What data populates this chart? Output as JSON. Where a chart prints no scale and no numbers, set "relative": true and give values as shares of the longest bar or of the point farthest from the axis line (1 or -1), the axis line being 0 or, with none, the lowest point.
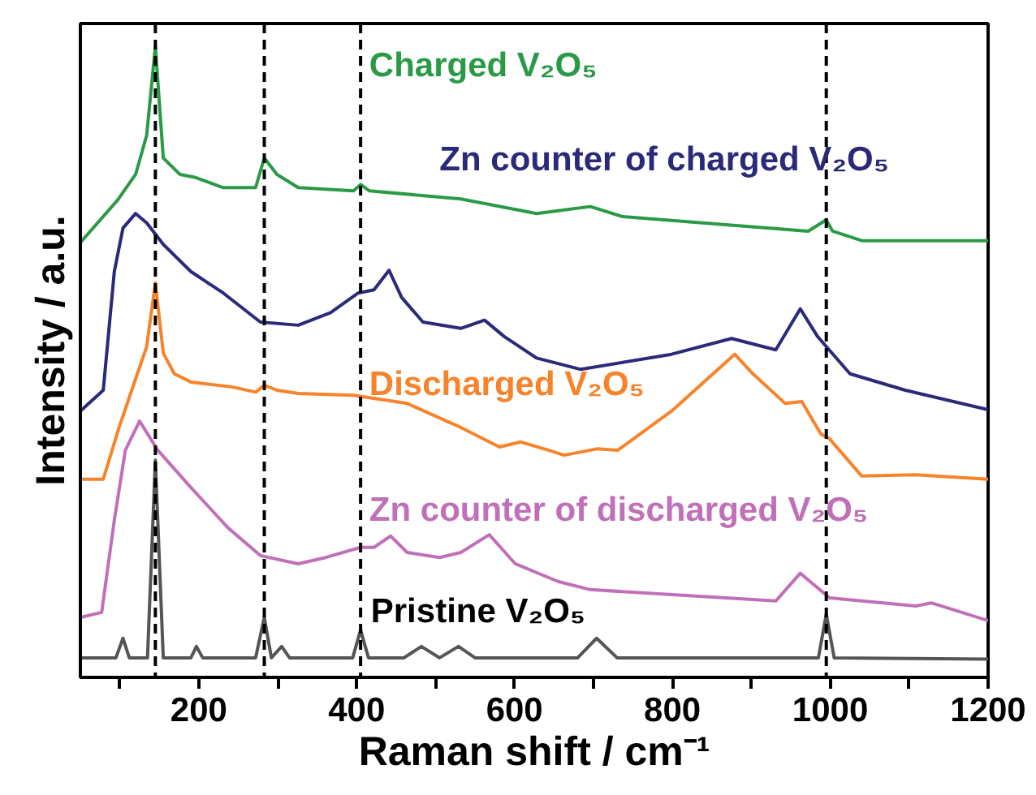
{
  "chart_data": {
    "type": "line",
    "relative": true,
    "xlabel": "Raman shift / cm⁻¹",
    "ylabel": "Intensity / a.u.",
    "xlim": [
      50,
      1200
    ],
    "xticks": [
      {
        "value": 100,
        "label": null
      },
      200,
      {
        "value": 300,
        "label": null
      },
      400,
      {
        "value": 500,
        "label": null
      },
      600,
      {
        "value": 700,
        "label": null
      },
      800,
      {
        "value": 900,
        "label": null
      },
      1000,
      {
        "value": 1100,
        "label": null
      },
      1200
    ],
    "grid": false,
    "line_style": "solid",
    "marker": "none",
    "ref_lines": [
      {
        "axis": "x",
        "value": 145,
        "color": "#000000",
        "line_style": "dashed"
      },
      {
        "axis": "x",
        "value": 283,
        "color": "#000000",
        "line_style": "dashed"
      },
      {
        "axis": "x",
        "value": 405,
        "color": "#000000",
        "line_style": "dashed"
      },
      {
        "axis": "x",
        "value": 995,
        "color": "#000000",
        "line_style": "dashed"
      }
    ],
    "series": [
      {
        "name": "Charged V₂O₅",
        "color": "#2a9a47",
        "x": [
          50,
          97,
          120,
          134,
          145,
          155,
          176,
          196,
          231,
          272,
          283,
          299,
          326,
          396,
          405,
          416,
          532,
          628,
          696,
          737,
          972,
          995,
          1003,
          1040,
          1200
        ],
        "values": [
          0.689,
          0.756,
          0.797,
          0.859,
          1,
          0.823,
          0.797,
          0.792,
          0.776,
          0.776,
          0.823,
          0.797,
          0.776,
          0.771,
          0.781,
          0.771,
          0.758,
          0.735,
          0.746,
          0.73,
          0.707,
          0.725,
          0.707,
          0.692,
          0.692
        ]
      },
      {
        "name": "Zn counter of charged V₂O₅",
        "color": "#2b2a7a",
        "x": [
          50,
          79,
          93,
          104,
          120,
          134,
          155,
          190,
          231,
          278,
          326,
          367,
          402,
          422,
          441,
          457,
          484,
          532,
          562,
          587,
          628,
          684,
          799,
          875,
          931,
          962,
          984,
          1025,
          1095,
          1200
        ],
        "values": [
          0.422,
          0.455,
          0.643,
          0.712,
          0.735,
          0.72,
          0.686,
          0.643,
          0.609,
          0.563,
          0.558,
          0.578,
          0.609,
          0.614,
          0.645,
          0.602,
          0.563,
          0.553,
          0.566,
          0.54,
          0.506,
          0.488,
          0.512,
          0.537,
          0.519,
          0.584,
          0.54,
          0.481,
          0.455,
          0.424
        ]
      },
      {
        "name": "Discharged V₂O₅",
        "color": "#f7832a",
        "x": [
          50,
          79,
          99,
          120,
          134,
          145,
          155,
          169,
          190,
          243,
          272,
          283,
          299,
          326,
          396,
          464,
          532,
          581,
          608,
          643,
          663,
          704,
          731,
          799,
          879,
          902,
          943,
          964,
          988,
          999,
          1040,
          1108,
          1200
        ],
        "values": [
          0.314,
          0.314,
          0.396,
          0.473,
          0.524,
          0.625,
          0.514,
          0.481,
          0.468,
          0.46,
          0.452,
          0.463,
          0.455,
          0.45,
          0.447,
          0.434,
          0.396,
          0.365,
          0.373,
          0.36,
          0.352,
          0.362,
          0.36,
          0.422,
          0.512,
          0.481,
          0.434,
          0.437,
          0.386,
          0.378,
          0.319,
          0.321,
          0.314
        ]
      },
      {
        "name": "Zn counter of discharged V₂O₅",
        "color": "#c070b8",
        "x": [
          50,
          77,
          93,
          107,
          125,
          148,
          190,
          237,
          278,
          326,
          361,
          405,
          422,
          443,
          464,
          505,
          532,
          568,
          601,
          655,
          696,
          931,
          962,
          999,
          1108,
          1128,
          1200
        ],
        "values": [
          0.095,
          0.103,
          0.249,
          0.36,
          0.406,
          0.36,
          0.301,
          0.237,
          0.193,
          0.18,
          0.19,
          0.206,
          0.206,
          0.224,
          0.198,
          0.19,
          0.198,
          0.226,
          0.18,
          0.152,
          0.139,
          0.121,
          0.165,
          0.126,
          0.113,
          0.118,
          0.09
        ]
      },
      {
        "name": "Pristine V₂O₅",
        "color": "#555555",
        "x": [
          50,
          95,
          104,
          112,
          135,
          145,
          155,
          190,
          197,
          205,
          272,
          283,
          292,
          305,
          315,
          395,
          405,
          415,
          460,
          482,
          505,
          529,
          550,
          680,
          704,
          730,
          985,
          995,
          1005,
          1200
        ],
        "values": [
          0.031,
          0.031,
          0.062,
          0.031,
          0.031,
          0.344,
          0.031,
          0.031,
          0.049,
          0.031,
          0.031,
          0.095,
          0.031,
          0.049,
          0.031,
          0.031,
          0.075,
          0.031,
          0.031,
          0.049,
          0.031,
          0.049,
          0.031,
          0.031,
          0.062,
          0.031,
          0.031,
          0.1,
          0.031,
          0.029
        ]
      }
    ]
  }
}
